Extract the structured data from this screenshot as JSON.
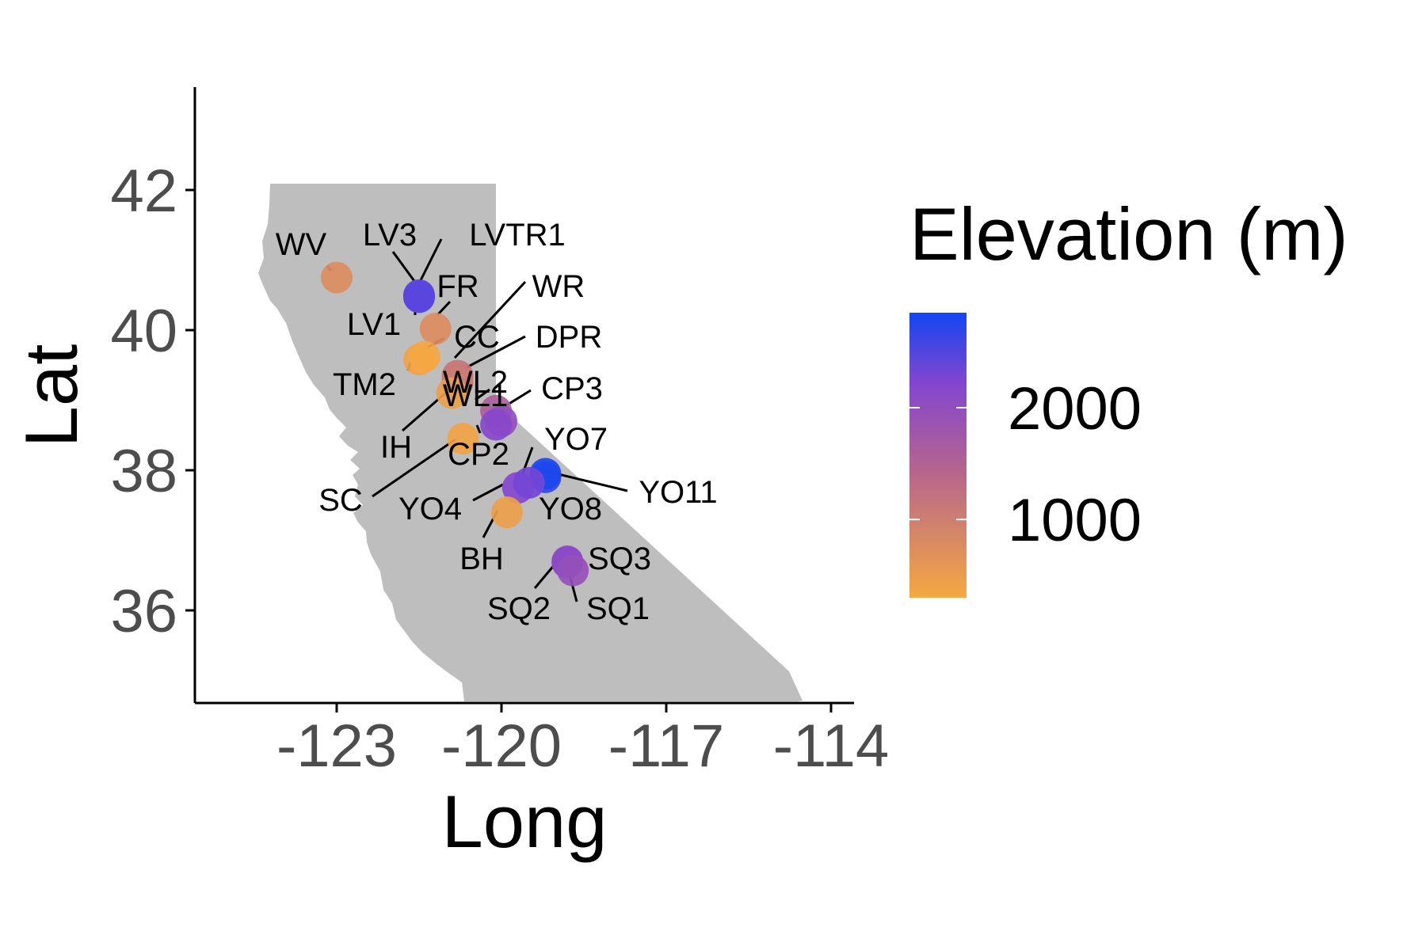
{
  "chart_data": {
    "type": "scatter",
    "xlabel": "Long",
    "ylabel": "Lat",
    "x_ticks": [
      -123,
      -120,
      -117,
      -114
    ],
    "y_ticks": [
      36,
      38,
      40,
      42
    ],
    "xlim": [
      -125.6,
      -113.5
    ],
    "ylim": [
      34.6,
      43.3
    ],
    "grid": false,
    "background_shape": "California",
    "legend": {
      "title": "Elevation (m)",
      "type": "colorbar",
      "position": "right",
      "ticks": [
        1000,
        2000
      ],
      "range": [
        300,
        2850
      ],
      "color_low": "#f5a841",
      "color_mid": "#8446d0",
      "color_high": "#1346f2"
    },
    "points": [
      {
        "name": "WV",
        "long": -123.0,
        "lat": 40.75,
        "elevation": 750
      },
      {
        "name": "LV3",
        "long": -121.5,
        "lat": 40.5,
        "elevation": 2450
      },
      {
        "name": "LVTR1",
        "long": -121.5,
        "lat": 40.48,
        "elevation": 2450
      },
      {
        "name": "LV1",
        "long": -121.5,
        "lat": 40.47,
        "elevation": 2450
      },
      {
        "name": "FR",
        "long": -121.2,
        "lat": 40.02,
        "elevation": 750
      },
      {
        "name": "TM2",
        "long": -121.5,
        "lat": 39.58,
        "elevation": 380
      },
      {
        "name": "CC",
        "long": -121.4,
        "lat": 39.62,
        "elevation": 310
      },
      {
        "name": "WR",
        "long": -120.8,
        "lat": 39.35,
        "elevation": 1150
      },
      {
        "name": "DPR",
        "long": -120.8,
        "lat": 39.3,
        "elevation": 1100
      },
      {
        "name": "WL2",
        "long": -120.8,
        "lat": 39.25,
        "elevation": 1050
      },
      {
        "name": "IH",
        "long": -120.9,
        "lat": 39.1,
        "elevation": 460
      },
      {
        "name": "WL1",
        "long": -120.1,
        "lat": 38.85,
        "elevation": 1600
      },
      {
        "name": "CP3",
        "long": -120.0,
        "lat": 38.7,
        "elevation": 2000
      },
      {
        "name": "CP2",
        "long": -120.1,
        "lat": 38.65,
        "elevation": 2150
      },
      {
        "name": "SC",
        "long": -120.7,
        "lat": 38.45,
        "elevation": 380
      },
      {
        "name": "YO7",
        "long": -119.2,
        "lat": 37.9,
        "elevation": 2700
      },
      {
        "name": "YO11",
        "long": -119.2,
        "lat": 37.95,
        "elevation": 2800
      },
      {
        "name": "YO4",
        "long": -119.7,
        "lat": 37.75,
        "elevation": 2200
      },
      {
        "name": "YO8",
        "long": -119.5,
        "lat": 37.82,
        "elevation": 2300
      },
      {
        "name": "BH",
        "long": -119.9,
        "lat": 37.4,
        "elevation": 450
      },
      {
        "name": "SQ3",
        "long": -118.8,
        "lat": 36.7,
        "elevation": 2150
      },
      {
        "name": "SQ2",
        "long": -118.8,
        "lat": 36.68,
        "elevation": 2100
      },
      {
        "name": "SQ1",
        "long": -118.7,
        "lat": 36.57,
        "elevation": 1950
      }
    ]
  },
  "colors": {
    "land": "#bebebe",
    "axis": "#000000",
    "leader_line": "#000000"
  }
}
